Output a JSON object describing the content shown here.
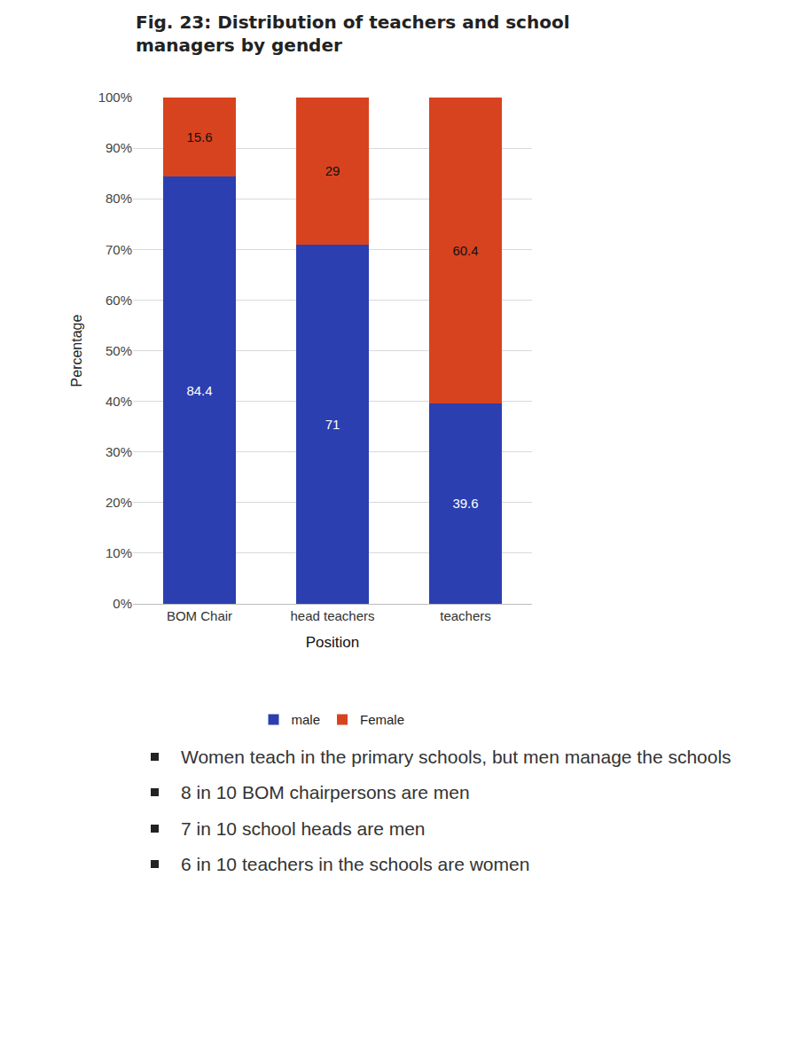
{
  "chart_data": {
    "type": "bar",
    "title": "Fig. 23: Distribution of teachers and school managers by gender",
    "x_label": "Position",
    "y_label": "Percentage",
    "categories": [
      "BOM Chair",
      "head teachers",
      "teachers"
    ],
    "series": [
      {
        "name": "male",
        "color": "#2b3fb0",
        "values": [
          84.4,
          71,
          39.6
        ]
      },
      {
        "name": "Female",
        "color": "#d8431f",
        "values": [
          15.6,
          29,
          60.4
        ]
      }
    ],
    "ylim": [
      0,
      100
    ],
    "yticks": [
      {
        "value": 0,
        "label": "0%"
      },
      {
        "value": 10,
        "label": "10%"
      },
      {
        "value": 20,
        "label": "20%"
      },
      {
        "value": 30,
        "label": "30%"
      },
      {
        "value": 40,
        "label": "40%"
      },
      {
        "value": 50,
        "label": "50%"
      },
      {
        "value": 60,
        "label": "60%"
      },
      {
        "value": 70,
        "label": "70%"
      },
      {
        "value": 80,
        "label": "80%"
      },
      {
        "value": 90,
        "label": "90%"
      },
      {
        "value": 100,
        "label": "100%"
      }
    ],
    "stacked": true,
    "data_labels": true,
    "grid": true,
    "legend": "bottom",
    "annotations": [
      "Women teach in the primary schools, but men manage the schools",
      "8 in 10 BOM chairpersons are men",
      "7 in 10 school heads are men",
      "6 in 10 teachers in the schools are women"
    ]
  }
}
